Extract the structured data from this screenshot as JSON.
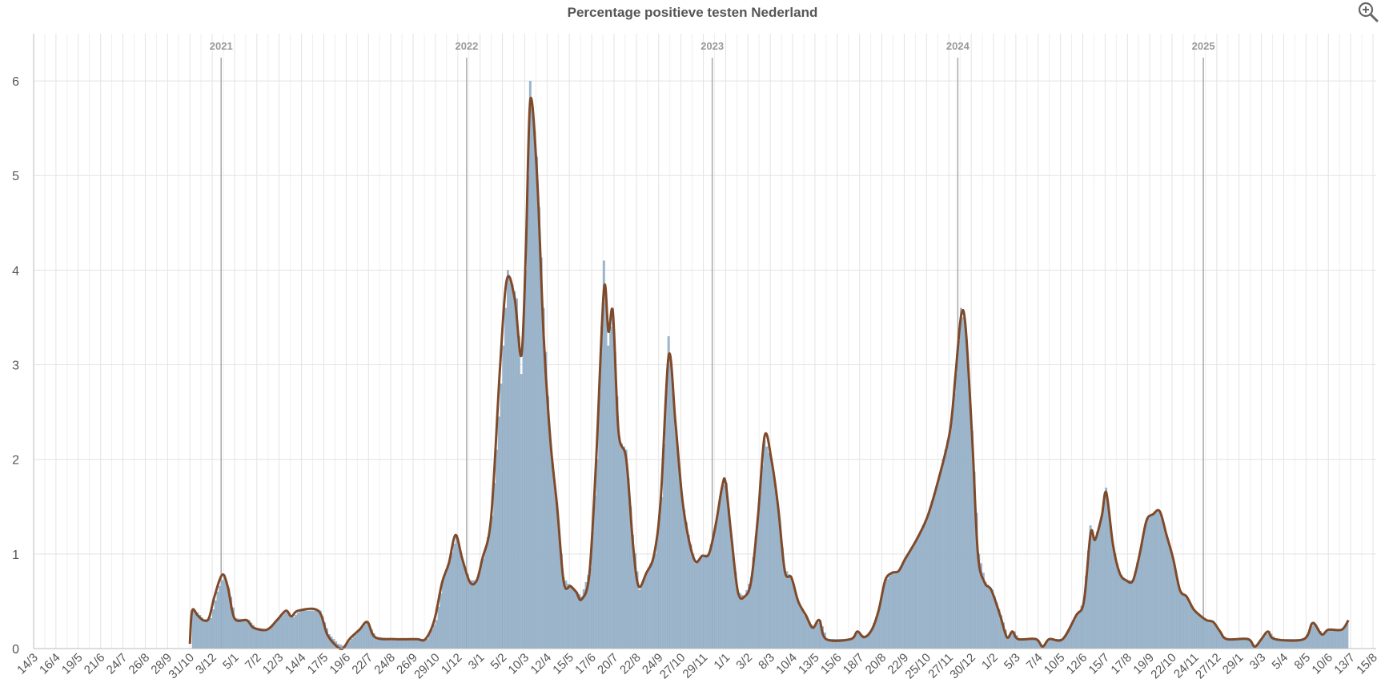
{
  "chart_title": "Percentage positieve testen Nederland",
  "icons": {
    "zoom": "zoom-in-icon"
  },
  "colors": {
    "bars": "#9db6cc",
    "bar_edge": "#7f9db8",
    "line": "#7f4a2a",
    "grid": "#e3e3e3",
    "year_line": "#a8a8a8",
    "axis_text": "#555555"
  },
  "chart_data": {
    "type": "bar",
    "title": "Percentage positieve testen Nederland",
    "xlabel": "",
    "ylabel": "",
    "ylim": [
      0,
      6.5
    ],
    "y_ticks": [
      0,
      1,
      2,
      3,
      4,
      5,
      6
    ],
    "grid": true,
    "legend": "none",
    "x_tick_labels": [
      "14/3",
      "16/4",
      "19/5",
      "21/6",
      "24/7",
      "26/8",
      "28/9",
      "31/10",
      "3/12",
      "5/1",
      "7/2",
      "12/3",
      "14/4",
      "17/5",
      "19/6",
      "22/7",
      "24/8",
      "26/9",
      "29/10",
      "1/12",
      "3/1",
      "5/2",
      "10/3",
      "12/4",
      "15/5",
      "17/6",
      "20/7",
      "22/8",
      "24/9",
      "27/10",
      "29/11",
      "1/1",
      "3/2",
      "8/3",
      "10/4",
      "13/5",
      "15/6",
      "18/7",
      "20/8",
      "22/9",
      "25/10",
      "27/11",
      "30/12",
      "1/2",
      "5/3",
      "7/4",
      "10/5",
      "12/6",
      "15/7",
      "17/8",
      "19/9",
      "22/10",
      "24/11",
      "27/12",
      "29/1",
      "3/3",
      "5/4",
      "8/5",
      "10/6",
      "13/7",
      "15/8"
    ],
    "year_markers": [
      {
        "label": "2021",
        "x": 8.4
      },
      {
        "label": "2022",
        "x": 19.4
      },
      {
        "label": "2023",
        "x": 30.4
      },
      {
        "label": "2024",
        "x": 41.4
      },
      {
        "label": "2025",
        "x": 52.4
      }
    ],
    "x_range": [
      0,
      60
    ],
    "bar_step": 0.1,
    "series": [
      {
        "kind": "bar",
        "points": [
          [
            7,
            0
          ],
          [
            7.05,
            0.4
          ],
          [
            7.3,
            0.38
          ],
          [
            7.6,
            0.3
          ],
          [
            7.9,
            0.32
          ],
          [
            8.2,
            0.6
          ],
          [
            8.5,
            0.78
          ],
          [
            8.75,
            0.6
          ],
          [
            9.0,
            0.32
          ],
          [
            9.6,
            0.3
          ],
          [
            9.9,
            0.22
          ],
          [
            10.5,
            0.2
          ],
          [
            10.9,
            0.3
          ],
          [
            11.3,
            0.4
          ],
          [
            11.6,
            0.33
          ],
          [
            11.9,
            0.4
          ],
          [
            12.8,
            0.4
          ],
          [
            13.2,
            0.15
          ],
          [
            13.6,
            0.05
          ],
          [
            13.9,
            0.02
          ],
          [
            14.2,
            0.1
          ],
          [
            14.6,
            0.2
          ],
          [
            14.9,
            0.28
          ],
          [
            15.3,
            0.12
          ],
          [
            16.2,
            0.1
          ],
          [
            17.2,
            0.1
          ],
          [
            17.6,
            0.1
          ],
          [
            18.0,
            0.3
          ],
          [
            18.3,
            0.72
          ],
          [
            18.6,
            0.92
          ],
          [
            18.9,
            1.2
          ],
          [
            19.2,
            0.92
          ],
          [
            19.5,
            0.72
          ],
          [
            19.8,
            0.72
          ],
          [
            20.1,
            0.95
          ],
          [
            20.5,
            1.4
          ],
          [
            20.9,
            2.8
          ],
          [
            21.2,
            4.0
          ],
          [
            21.6,
            3.7
          ],
          [
            21.8,
            2.9
          ],
          [
            22.0,
            4.0
          ],
          [
            22.2,
            6.0
          ],
          [
            22.5,
            5.2
          ],
          [
            22.8,
            3.6
          ],
          [
            23.1,
            2.2
          ],
          [
            23.4,
            1.5
          ],
          [
            23.7,
            0.75
          ],
          [
            24.0,
            0.65
          ],
          [
            24.3,
            0.6
          ],
          [
            24.5,
            0.55
          ],
          [
            24.9,
            0.85
          ],
          [
            25.2,
            2.0
          ],
          [
            25.5,
            4.1
          ],
          [
            25.7,
            3.2
          ],
          [
            25.9,
            3.6
          ],
          [
            26.2,
            2.2
          ],
          [
            26.5,
            2.1
          ],
          [
            26.8,
            1.2
          ],
          [
            27.1,
            0.62
          ],
          [
            27.4,
            0.8
          ],
          [
            27.8,
            1.0
          ],
          [
            28.1,
            1.6
          ],
          [
            28.4,
            3.3
          ],
          [
            28.7,
            2.4
          ],
          [
            29.0,
            1.6
          ],
          [
            29.3,
            1.2
          ],
          [
            29.6,
            0.9
          ],
          [
            29.9,
            0.98
          ],
          [
            30.2,
            1.0
          ],
          [
            30.5,
            1.3
          ],
          [
            30.8,
            1.7
          ],
          [
            31.0,
            1.75
          ],
          [
            31.2,
            1.2
          ],
          [
            31.5,
            0.6
          ],
          [
            31.8,
            0.55
          ],
          [
            32.1,
            0.75
          ],
          [
            32.4,
            1.4
          ],
          [
            32.7,
            2.2
          ],
          [
            33.0,
            2.0
          ],
          [
            33.3,
            1.5
          ],
          [
            33.6,
            0.85
          ],
          [
            33.9,
            0.75
          ],
          [
            34.2,
            0.5
          ],
          [
            34.5,
            0.35
          ],
          [
            34.9,
            0.22
          ],
          [
            35.2,
            0.3
          ],
          [
            35.5,
            0.1
          ],
          [
            36.6,
            0.1
          ],
          [
            36.9,
            0.18
          ],
          [
            37.2,
            0.12
          ],
          [
            37.5,
            0.2
          ],
          [
            37.8,
            0.4
          ],
          [
            38.1,
            0.7
          ],
          [
            38.4,
            0.8
          ],
          [
            38.7,
            0.82
          ],
          [
            39.0,
            0.95
          ],
          [
            39.5,
            1.15
          ],
          [
            40.0,
            1.4
          ],
          [
            40.5,
            1.8
          ],
          [
            41.0,
            2.3
          ],
          [
            41.3,
            2.9
          ],
          [
            41.5,
            3.6
          ],
          [
            41.7,
            3.4
          ],
          [
            42.0,
            2.3
          ],
          [
            42.3,
            1.0
          ],
          [
            42.6,
            0.7
          ],
          [
            42.9,
            0.62
          ],
          [
            43.3,
            0.35
          ],
          [
            43.6,
            0.12
          ],
          [
            43.9,
            0.18
          ],
          [
            44.1,
            0.1
          ],
          [
            44.9,
            0.1
          ],
          [
            45.2,
            0.02
          ],
          [
            45.5,
            0.1
          ],
          [
            46.1,
            0.1
          ],
          [
            46.7,
            0.35
          ],
          [
            47.0,
            0.5
          ],
          [
            47.3,
            1.3
          ],
          [
            47.5,
            1.15
          ],
          [
            47.8,
            1.4
          ],
          [
            48.0,
            1.7
          ],
          [
            48.3,
            1.1
          ],
          [
            48.6,
            0.8
          ],
          [
            48.9,
            0.72
          ],
          [
            49.2,
            0.72
          ],
          [
            49.5,
            1.0
          ],
          [
            49.8,
            1.35
          ],
          [
            50.1,
            1.42
          ],
          [
            50.4,
            1.45
          ],
          [
            50.7,
            1.2
          ],
          [
            51.0,
            0.95
          ],
          [
            51.3,
            0.62
          ],
          [
            51.6,
            0.55
          ],
          [
            51.9,
            0.42
          ],
          [
            52.2,
            0.35
          ],
          [
            52.5,
            0.3
          ],
          [
            52.8,
            0.28
          ],
          [
            53.1,
            0.18
          ],
          [
            53.4,
            0.1
          ],
          [
            54.4,
            0.1
          ],
          [
            54.7,
            0.02
          ],
          [
            55.0,
            0.1
          ],
          [
            55.3,
            0.18
          ],
          [
            55.6,
            0.1
          ],
          [
            56.9,
            0.1
          ],
          [
            57.3,
            0.28
          ],
          [
            57.7,
            0.15
          ],
          [
            58.0,
            0.2
          ],
          [
            58.6,
            0.2
          ],
          [
            58.9,
            0.3
          ]
        ]
      },
      {
        "kind": "line",
        "points": [
          [
            7.0,
            0.05
          ],
          [
            7.1,
            0.4
          ],
          [
            7.35,
            0.35
          ],
          [
            7.6,
            0.3
          ],
          [
            7.85,
            0.32
          ],
          [
            8.1,
            0.55
          ],
          [
            8.45,
            0.78
          ],
          [
            8.7,
            0.65
          ],
          [
            9.0,
            0.32
          ],
          [
            9.55,
            0.3
          ],
          [
            9.85,
            0.22
          ],
          [
            10.45,
            0.2
          ],
          [
            10.9,
            0.3
          ],
          [
            11.3,
            0.4
          ],
          [
            11.55,
            0.34
          ],
          [
            11.85,
            0.4
          ],
          [
            12.75,
            0.4
          ],
          [
            13.15,
            0.15
          ],
          [
            13.55,
            0.03
          ],
          [
            13.85,
            0.0
          ],
          [
            14.15,
            0.1
          ],
          [
            14.6,
            0.2
          ],
          [
            14.95,
            0.28
          ],
          [
            15.3,
            0.12
          ],
          [
            16.2,
            0.1
          ],
          [
            17.15,
            0.1
          ],
          [
            17.55,
            0.1
          ],
          [
            17.95,
            0.3
          ],
          [
            18.3,
            0.7
          ],
          [
            18.6,
            0.9
          ],
          [
            18.9,
            1.2
          ],
          [
            19.2,
            0.95
          ],
          [
            19.55,
            0.7
          ],
          [
            19.85,
            0.72
          ],
          [
            20.1,
            0.95
          ],
          [
            20.5,
            1.4
          ],
          [
            20.9,
            3.0
          ],
          [
            21.2,
            3.9
          ],
          [
            21.55,
            3.7
          ],
          [
            21.85,
            3.1
          ],
          [
            22.05,
            4.2
          ],
          [
            22.25,
            5.8
          ],
          [
            22.55,
            5.0
          ],
          [
            22.85,
            3.3
          ],
          [
            23.15,
            2.2
          ],
          [
            23.45,
            1.5
          ],
          [
            23.75,
            0.7
          ],
          [
            24.05,
            0.66
          ],
          [
            24.3,
            0.6
          ],
          [
            24.55,
            0.52
          ],
          [
            24.9,
            0.8
          ],
          [
            25.2,
            2.0
          ],
          [
            25.55,
            3.8
          ],
          [
            25.75,
            3.35
          ],
          [
            25.95,
            3.55
          ],
          [
            26.2,
            2.3
          ],
          [
            26.55,
            2.0
          ],
          [
            26.85,
            1.1
          ],
          [
            27.1,
            0.66
          ],
          [
            27.45,
            0.8
          ],
          [
            27.8,
            1.0
          ],
          [
            28.1,
            1.6
          ],
          [
            28.45,
            3.1
          ],
          [
            28.75,
            2.4
          ],
          [
            29.05,
            1.6
          ],
          [
            29.35,
            1.15
          ],
          [
            29.65,
            0.92
          ],
          [
            29.95,
            0.98
          ],
          [
            30.25,
            1.0
          ],
          [
            30.55,
            1.3
          ],
          [
            30.85,
            1.72
          ],
          [
            31.0,
            1.75
          ],
          [
            31.25,
            1.2
          ],
          [
            31.55,
            0.6
          ],
          [
            31.85,
            0.55
          ],
          [
            32.15,
            0.72
          ],
          [
            32.45,
            1.4
          ],
          [
            32.75,
            2.25
          ],
          [
            33.05,
            2.0
          ],
          [
            33.35,
            1.5
          ],
          [
            33.65,
            0.82
          ],
          [
            33.95,
            0.75
          ],
          [
            34.25,
            0.5
          ],
          [
            34.6,
            0.35
          ],
          [
            34.9,
            0.22
          ],
          [
            35.2,
            0.3
          ],
          [
            35.5,
            0.1
          ],
          [
            36.6,
            0.1
          ],
          [
            36.9,
            0.18
          ],
          [
            37.2,
            0.12
          ],
          [
            37.55,
            0.2
          ],
          [
            37.85,
            0.4
          ],
          [
            38.15,
            0.72
          ],
          [
            38.45,
            0.8
          ],
          [
            38.75,
            0.82
          ],
          [
            39.05,
            0.95
          ],
          [
            39.55,
            1.15
          ],
          [
            40.05,
            1.4
          ],
          [
            40.55,
            1.8
          ],
          [
            41.05,
            2.3
          ],
          [
            41.3,
            2.9
          ],
          [
            41.55,
            3.52
          ],
          [
            41.75,
            3.4
          ],
          [
            42.05,
            2.2
          ],
          [
            42.3,
            1.0
          ],
          [
            42.6,
            0.7
          ],
          [
            42.9,
            0.62
          ],
          [
            43.3,
            0.35
          ],
          [
            43.6,
            0.12
          ],
          [
            43.85,
            0.18
          ],
          [
            44.1,
            0.1
          ],
          [
            44.9,
            0.1
          ],
          [
            45.2,
            0.02
          ],
          [
            45.5,
            0.1
          ],
          [
            46.1,
            0.1
          ],
          [
            46.7,
            0.35
          ],
          [
            47.05,
            0.5
          ],
          [
            47.35,
            1.22
          ],
          [
            47.55,
            1.15
          ],
          [
            47.85,
            1.4
          ],
          [
            48.05,
            1.65
          ],
          [
            48.35,
            1.1
          ],
          [
            48.65,
            0.8
          ],
          [
            48.95,
            0.72
          ],
          [
            49.25,
            0.72
          ],
          [
            49.55,
            1.0
          ],
          [
            49.85,
            1.35
          ],
          [
            50.15,
            1.42
          ],
          [
            50.45,
            1.45
          ],
          [
            50.75,
            1.2
          ],
          [
            51.05,
            0.95
          ],
          [
            51.35,
            0.62
          ],
          [
            51.65,
            0.55
          ],
          [
            51.95,
            0.42
          ],
          [
            52.25,
            0.35
          ],
          [
            52.55,
            0.3
          ],
          [
            52.85,
            0.28
          ],
          [
            53.15,
            0.18
          ],
          [
            53.45,
            0.1
          ],
          [
            54.4,
            0.1
          ],
          [
            54.7,
            0.02
          ],
          [
            55.0,
            0.1
          ],
          [
            55.3,
            0.18
          ],
          [
            55.6,
            0.1
          ],
          [
            56.9,
            0.1
          ],
          [
            57.3,
            0.27
          ],
          [
            57.7,
            0.15
          ],
          [
            58.0,
            0.2
          ],
          [
            58.6,
            0.2
          ],
          [
            58.9,
            0.3
          ]
        ]
      }
    ]
  }
}
